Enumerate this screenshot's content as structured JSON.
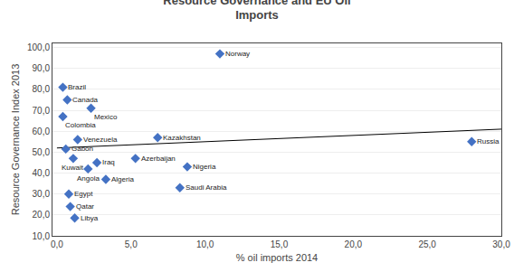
{
  "chart_data": {
    "type": "scatter",
    "title": "Resource Governance and EU Oil\nImports",
    "xlabel": "% oil imports 2014",
    "ylabel": "Resource Governance Index 2013",
    "labels": [
      "Norway",
      "Russia",
      "Brazil",
      "Canada",
      "Mexico",
      "Colombia",
      "Venezuela",
      "Kazakhstan",
      "Gabon",
      "Kuwait",
      "Iraq",
      "Angola",
      "Azerbaijan",
      "Nigeria",
      "Algeria",
      "Saudi Arabia",
      "Egypt",
      "Qatar",
      "Libya"
    ],
    "x": [
      11.0,
      28.0,
      0.4,
      0.7,
      2.3,
      0.4,
      1.4,
      6.8,
      0.6,
      1.1,
      2.7,
      2.1,
      5.3,
      8.8,
      3.3,
      8.3,
      0.8,
      0.9,
      1.2
    ],
    "y": [
      97.0,
      55.0,
      81.0,
      75.0,
      71.0,
      67.0,
      56.0,
      57.0,
      51.5,
      47.0,
      45.0,
      42.0,
      47.0,
      43.0,
      37.0,
      33.0,
      30.0,
      24.0,
      18.5
    ],
    "color": "#4472C4",
    "marker": "diamond",
    "trendline": {
      "x": [
        0,
        30
      ],
      "y": [
        52.0,
        61.0
      ],
      "color": "black"
    },
    "xlim": [
      -0.3,
      30
    ],
    "ylim": [
      10,
      102
    ],
    "xticks": [
      {
        "value": 0.0,
        "label": "0,0"
      },
      {
        "value": 5.0,
        "label": "5,0"
      },
      {
        "value": 10.0,
        "label": "10,0"
      },
      {
        "value": 15.0,
        "label": "15,0"
      },
      {
        "value": 20.0,
        "label": "20,0"
      },
      {
        "value": 25.0,
        "label": "25,0"
      },
      {
        "value": 30.0,
        "label": "30,0"
      }
    ],
    "yticks": [
      {
        "value": 10.0,
        "label": "10,0"
      },
      {
        "value": 20.0,
        "label": "20,0"
      },
      {
        "value": 30.0,
        "label": "30,0"
      },
      {
        "value": 40.0,
        "label": "40,0"
      },
      {
        "value": 50.0,
        "label": "50,0"
      },
      {
        "value": 60.0,
        "label": "60,0"
      },
      {
        "value": 70.0,
        "label": "70,0"
      },
      {
        "value": 80.0,
        "label": "80,0"
      },
      {
        "value": 90.0,
        "label": "90,0"
      },
      {
        "value": 100.0,
        "label": "100,0"
      }
    ],
    "grid": "y"
  }
}
